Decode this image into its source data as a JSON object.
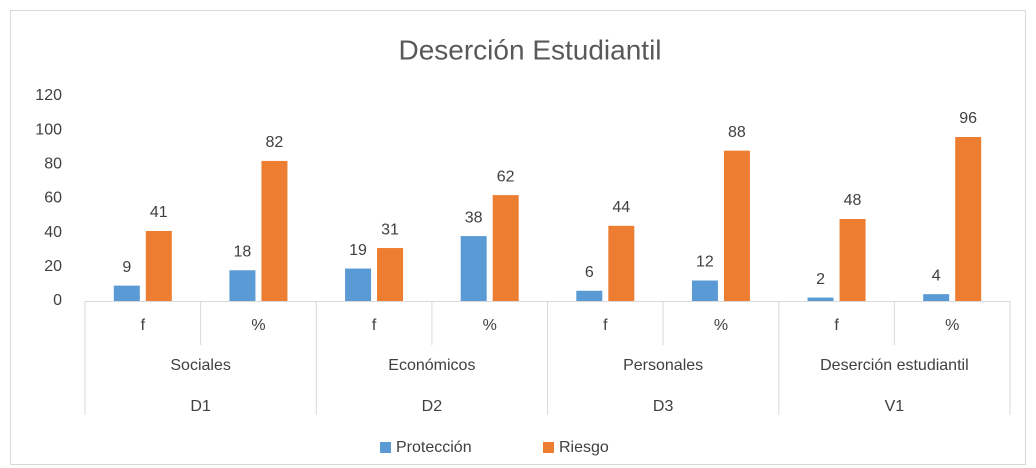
{
  "chart_data": {
    "type": "bar",
    "title": "Deserción Estudiantil",
    "categories": [
      "f",
      "%",
      "f",
      "%",
      "f",
      "%",
      "f",
      "%"
    ],
    "category_groups": [
      "Sociales",
      "Económicos",
      "Personales",
      "Deserción estudiantil"
    ],
    "category_supergroups": [
      "D1",
      "D2",
      "D3",
      "V1"
    ],
    "series": [
      {
        "name": "Protección",
        "color": "#5b9bd5",
        "values": [
          9,
          18,
          19,
          38,
          6,
          12,
          2,
          4
        ]
      },
      {
        "name": "Riesgo",
        "color": "#ed7d31",
        "values": [
          41,
          82,
          31,
          62,
          44,
          88,
          48,
          96
        ]
      }
    ],
    "ylim": [
      0,
      120
    ],
    "yticks": [
      0,
      20,
      40,
      60,
      80,
      100,
      120
    ],
    "grid": false,
    "legend": "bottom"
  }
}
